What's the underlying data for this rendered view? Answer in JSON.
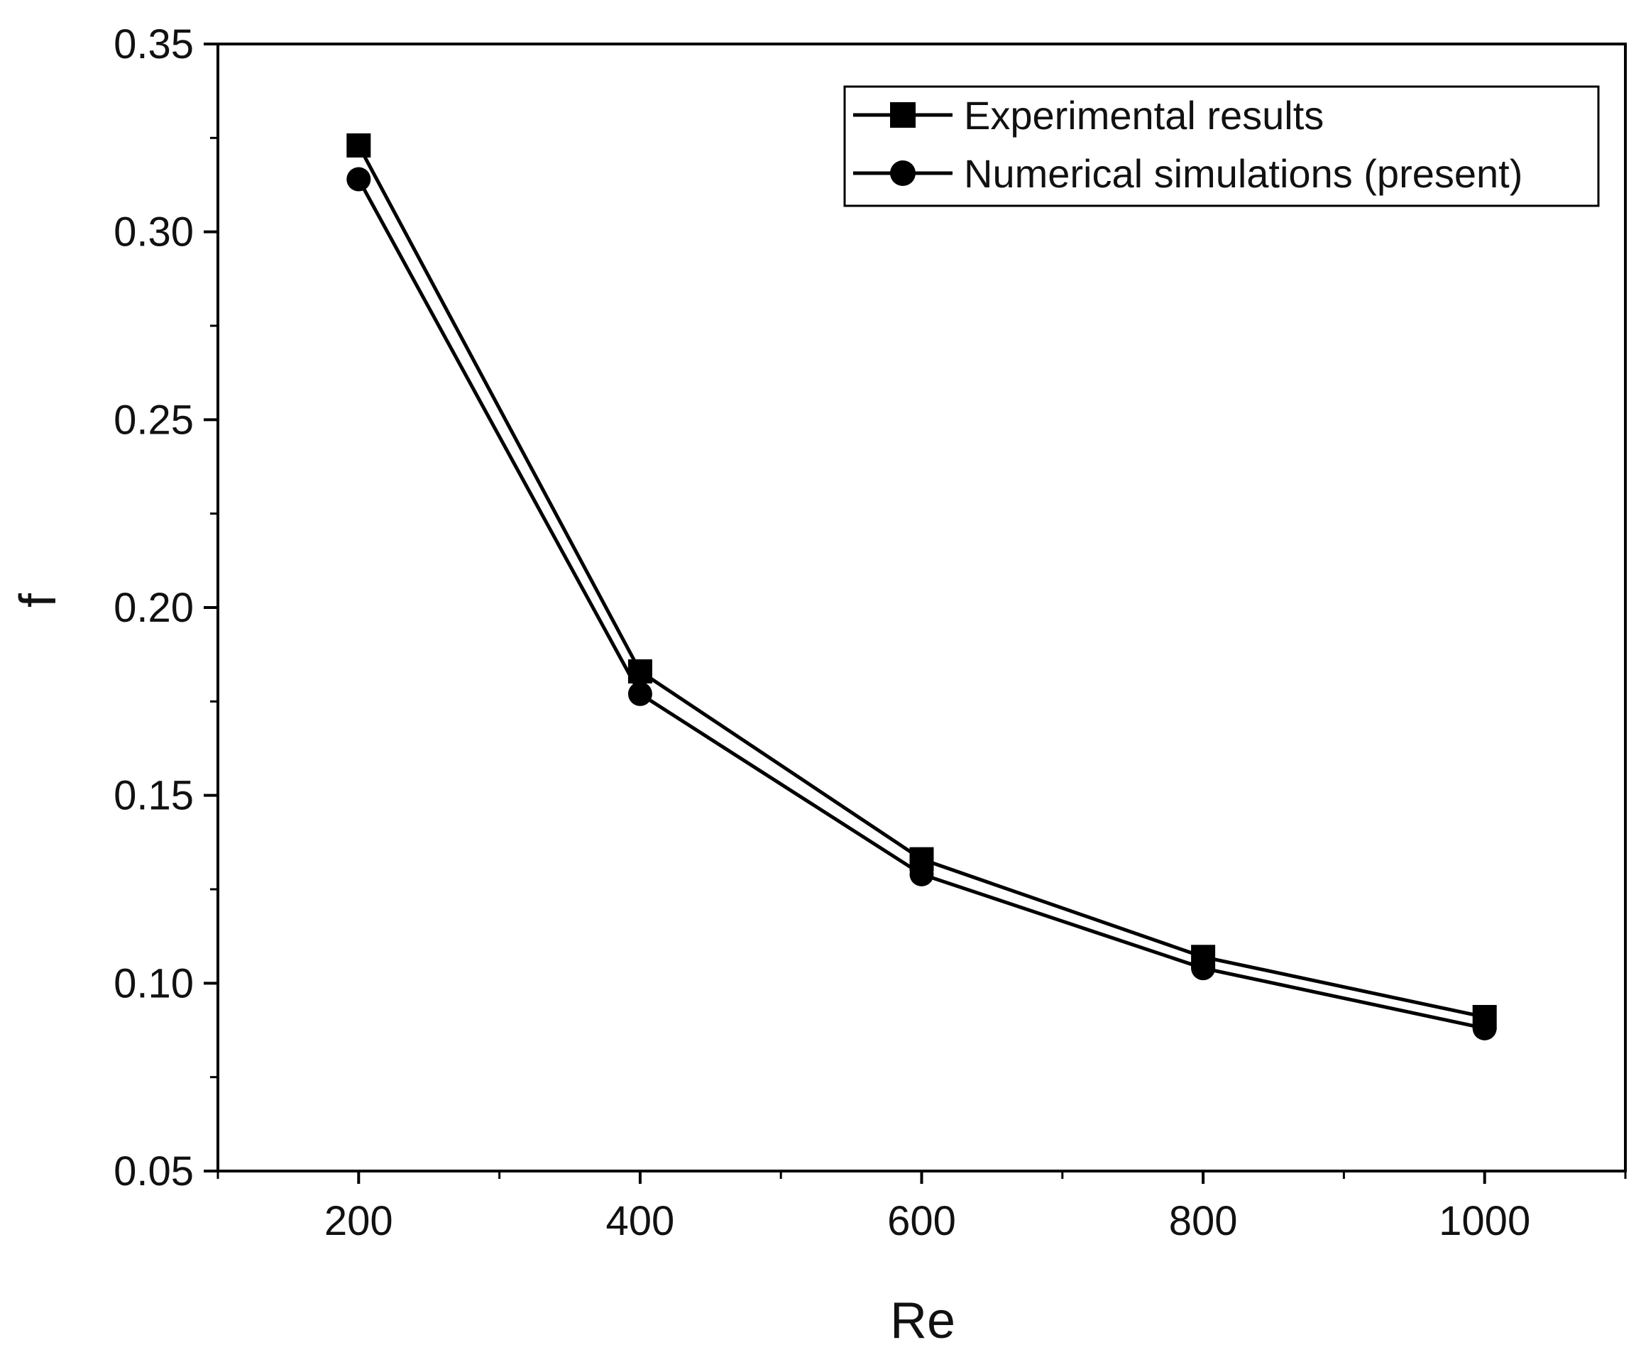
{
  "chart_data": {
    "type": "line",
    "title": "",
    "xlabel": "Re",
    "ylabel": "f",
    "xlim": [
      100,
      1100
    ],
    "ylim": [
      0.05,
      0.35
    ],
    "x_ticks": [
      200,
      400,
      600,
      800,
      1000
    ],
    "x_tick_labels": [
      "200",
      "400",
      "600",
      "800",
      "1000"
    ],
    "x_minor_ticks": [
      100,
      300,
      500,
      700,
      900,
      1100
    ],
    "y_ticks": [
      0.05,
      0.1,
      0.15,
      0.2,
      0.25,
      0.3,
      0.35
    ],
    "y_tick_labels": [
      "0.05",
      "0.10",
      "0.15",
      "0.20",
      "0.25",
      "0.30",
      "0.35"
    ],
    "y_minor_ticks": [
      0.075,
      0.125,
      0.175,
      0.225,
      0.275,
      0.325
    ],
    "grid": false,
    "legend_position": "top-right",
    "x": [
      200,
      400,
      600,
      800,
      1000
    ],
    "series": [
      {
        "name": "Experimental results",
        "marker": "square",
        "color": "#000000",
        "values": [
          0.323,
          0.183,
          0.133,
          0.107,
          0.091
        ]
      },
      {
        "name": "Numerical simulations (present)",
        "marker": "circle",
        "color": "#000000",
        "values": [
          0.314,
          0.177,
          0.129,
          0.104,
          0.088
        ]
      }
    ]
  }
}
